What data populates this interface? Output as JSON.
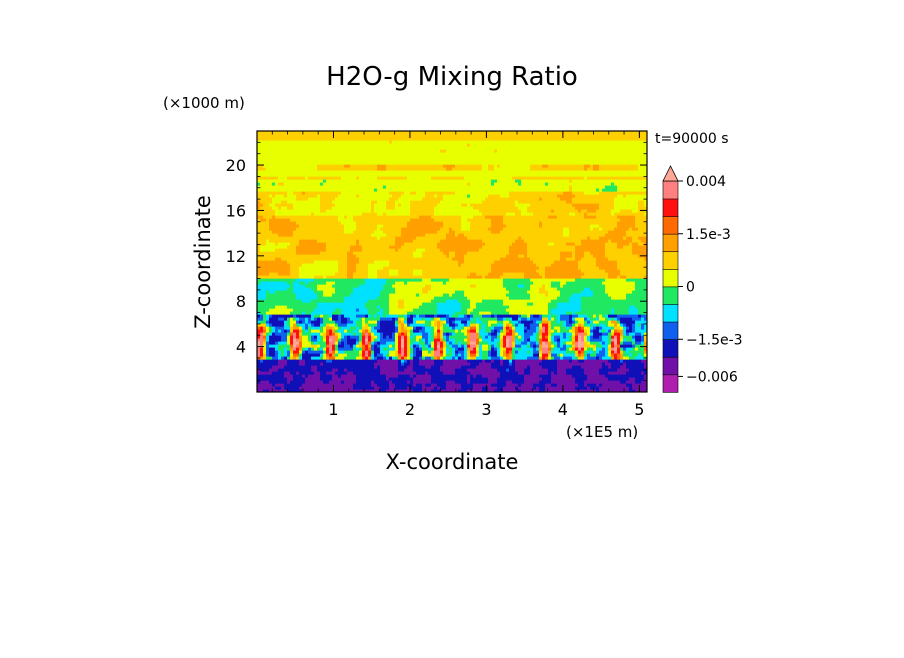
{
  "chart_data": {
    "type": "heatmap",
    "title": "H2O-g Mixing Ratio",
    "xlabel": "X-coordinate",
    "ylabel": "Z-coordinate",
    "x_unit_label": "(×1E5 m)",
    "y_unit_label": "(×1000 m)",
    "time_label": "t=90000 s",
    "xlim": [
      0,
      5.1
    ],
    "ylim": [
      0,
      23
    ],
    "x_ticks": [
      1,
      2,
      3,
      4,
      5
    ],
    "y_ticks": [
      4,
      8,
      12,
      16,
      20
    ],
    "colorbar": {
      "extend": "both",
      "levels": [
        -0.009,
        -0.006,
        -0.003,
        -0.0015,
        -0.001,
        -0.0005,
        0,
        0.0005,
        0.001,
        0.0015,
        0.002,
        0.003,
        0.004
      ],
      "colors": [
        "#ff19d2",
        "#b01eb0",
        "#7010a8",
        "#1010b8",
        "#1060f0",
        "#00e0ff",
        "#20e860",
        "#e8ff00",
        "#ffd000",
        "#ffa000",
        "#ff6a00",
        "#ff1010",
        "#ff8080",
        "#ffa898"
      ],
      "tick_labels": [
        {
          "value": 0.004,
          "label": "0.004"
        },
        {
          "value": 0.0015,
          "label": "1.5e-3"
        },
        {
          "value": 0,
          "label": "0"
        },
        {
          "value": -0.0015,
          "label": "−1.5e-3"
        },
        {
          "value": -0.006,
          "label": "−0.006"
        }
      ]
    }
  }
}
